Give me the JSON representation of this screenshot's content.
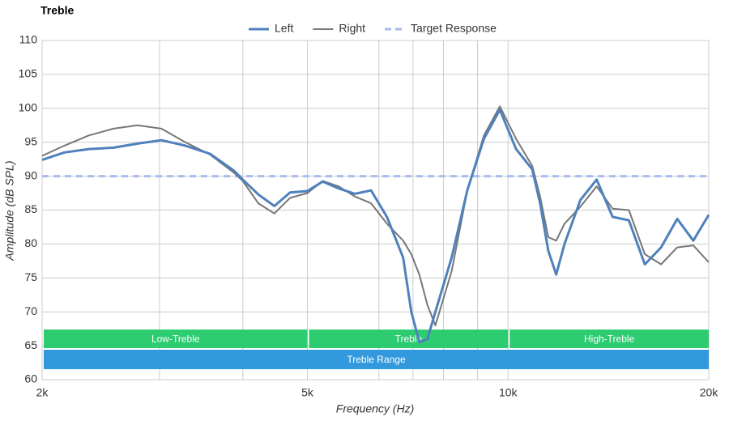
{
  "chart_data": {
    "type": "line",
    "title": "Treble",
    "x_label": "Frequency (Hz)",
    "y_label": "Amplitude (dB SPL)",
    "x_scale": "log",
    "grid": true,
    "legend": "top",
    "xlim": [
      2000,
      20000
    ],
    "ylim": [
      60,
      110
    ],
    "xticks": [
      {
        "value": 2000,
        "label": "2k"
      },
      {
        "value": 5000,
        "label": "5k"
      },
      {
        "value": 10000,
        "label": "10k"
      },
      {
        "value": 20000,
        "label": "20k"
      }
    ],
    "xminor": [
      3000,
      4000,
      6400,
      7200,
      8000,
      9000
    ],
    "yticks": [
      60,
      65,
      70,
      75,
      80,
      85,
      90,
      95,
      100,
      105,
      110
    ],
    "x": [
      2000,
      2160,
      2350,
      2560,
      2780,
      3020,
      3280,
      3570,
      3880,
      4000,
      4220,
      4460,
      4710,
      5000,
      5270,
      5570,
      5890,
      6230,
      6580,
      6960,
      7160,
      7360,
      7570,
      7780,
      8230,
      8690,
      9200,
      9720,
      10280,
      10870,
      11170,
      11490,
      11810,
      12150,
      12840,
      13580,
      14350,
      15180,
      16040,
      16960,
      17940,
      18960,
      20000
    ],
    "series": [
      {
        "name": "Left",
        "color": "#4f81bd",
        "width": 3,
        "values": [
          92.4,
          93.5,
          94,
          94.2,
          94.8,
          95.3,
          94.5,
          93.3,
          90.8,
          89.5,
          87.3,
          85.6,
          87.6,
          87.8,
          89.2,
          88.2,
          87.4,
          87.9,
          84,
          78,
          70,
          65.5,
          66,
          70,
          78,
          88,
          95.5,
          99.8,
          94,
          91,
          86,
          79,
          75.5,
          80,
          86.5,
          89.5,
          84,
          83.5,
          77,
          79.5,
          83.7,
          80.5,
          84.3
        ]
      },
      {
        "name": "Right",
        "color": "#777777",
        "width": 2,
        "values": [
          93,
          94.5,
          96,
          97,
          97.5,
          97,
          95,
          93.2,
          90.5,
          89.3,
          86,
          84.5,
          86.8,
          87.5,
          89.3,
          88.5,
          87,
          86,
          83,
          80.5,
          78.5,
          75.5,
          71,
          68,
          76,
          88,
          96,
          100.3,
          95.5,
          91.5,
          87,
          81,
          80.5,
          83,
          85.5,
          88.5,
          85.2,
          85,
          78.5,
          77,
          79.5,
          79.8,
          77.3
        ]
      }
    ],
    "target": {
      "name": "Target Response",
      "color": "#aabbf0",
      "value": 90
    },
    "bands": [
      {
        "label": "Low-Treble",
        "range": [
          2000,
          5000
        ],
        "color": "#2ecc71",
        "row": 0
      },
      {
        "label": "Treble",
        "range": [
          5000,
          10000
        ],
        "color": "#2ecc71",
        "row": 0
      },
      {
        "label": "High-Treble",
        "range": [
          10000,
          20000
        ],
        "color": "#2ecc71",
        "row": 0
      },
      {
        "label": "Treble Range",
        "range": [
          2000,
          20000
        ],
        "color": "#3399dd",
        "row": 1
      }
    ]
  }
}
